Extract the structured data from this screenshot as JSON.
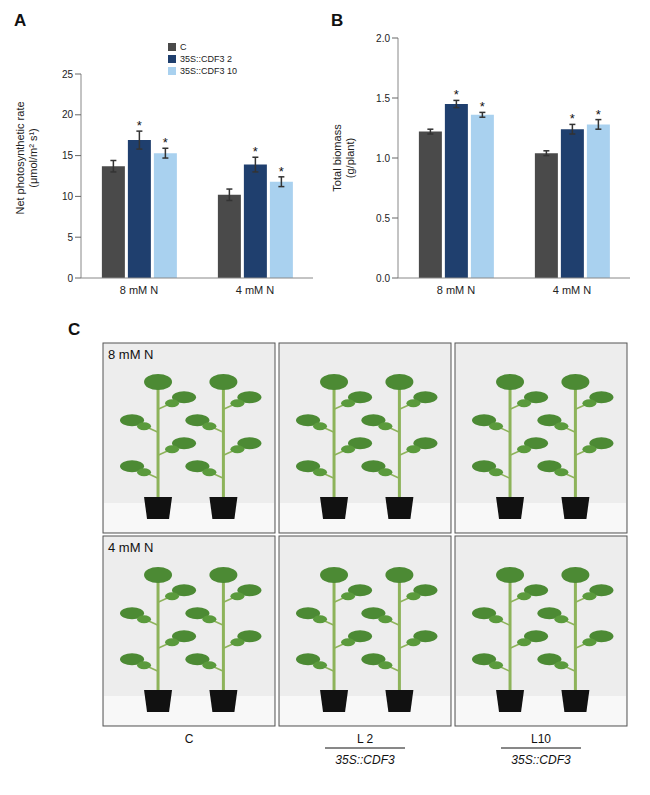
{
  "chart_data": [
    {
      "type": "bar",
      "panel": "A",
      "y_label": [
        "Net photosynthetic rate",
        "(μmol/m² s¹)"
      ],
      "categories": [
        "8  mM N",
        "4 mM N"
      ],
      "series": [
        {
          "name": "C",
          "color": "#4a4a4a",
          "values": [
            13.7,
            10.2
          ],
          "errors": [
            0.7,
            0.7
          ],
          "significant": [
            false,
            false
          ]
        },
        {
          "name": "35S::CDF3 2",
          "color": "#1f3f6e",
          "values": [
            16.9,
            13.9
          ],
          "errors": [
            1.1,
            0.9
          ],
          "significant": [
            true,
            true
          ]
        },
        {
          "name": "35S::CDF3 10",
          "color": "#a9d1ef",
          "values": [
            15.3,
            11.8
          ],
          "errors": [
            0.6,
            0.6
          ],
          "significant": [
            true,
            true
          ]
        }
      ],
      "significance_mark": "*",
      "ylim": [
        0,
        25
      ],
      "yticks": [
        0,
        5,
        10,
        15,
        20,
        25
      ],
      "legend": "top"
    },
    {
      "type": "bar",
      "panel": "B",
      "y_label": [
        "Total biomass",
        "(g/plant)"
      ],
      "categories": [
        "8  mM N",
        "4 mM N"
      ],
      "series": [
        {
          "color": "#4a4a4a",
          "values": [
            1.22,
            1.04
          ],
          "errors": [
            0.02,
            0.02
          ],
          "significant": [
            false,
            false
          ]
        },
        {
          "color": "#1f3f6e",
          "values": [
            1.45,
            1.24
          ],
          "errors": [
            0.03,
            0.04
          ],
          "significant": [
            true,
            true
          ]
        },
        {
          "color": "#a9d1ef",
          "values": [
            1.36,
            1.28
          ],
          "errors": [
            0.02,
            0.04
          ],
          "significant": [
            true,
            true
          ]
        }
      ],
      "significance_mark": "*",
      "ylim": [
        0,
        2.0
      ],
      "yticks": [
        {
          "value": 0,
          "label": "0.0"
        },
        {
          "value": 0.5,
          "label": "0.5"
        },
        {
          "value": 1.0,
          "label": "1.0"
        },
        {
          "value": 1.5,
          "label": "1.5"
        },
        {
          "value": 2.0,
          "label": "2.0"
        }
      ]
    }
  ],
  "panel_c": {
    "panel": "C",
    "rows": [
      "8 mM N",
      "4 mM N"
    ],
    "columns": [
      {
        "label": "C"
      },
      {
        "label": "L 2",
        "group": "35S::CDF3"
      },
      {
        "label": "L10",
        "group": "35S::CDF3"
      }
    ]
  }
}
